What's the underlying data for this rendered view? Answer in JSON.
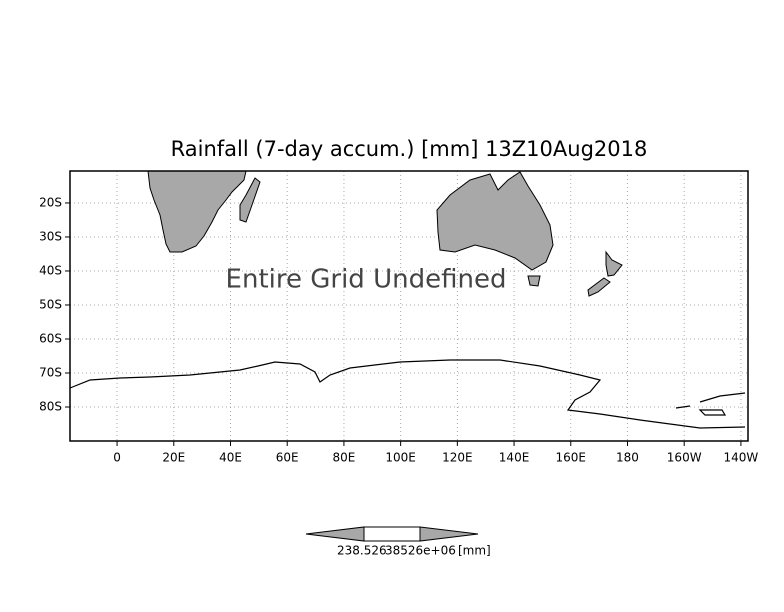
{
  "map": {
    "title": "Rainfall (7-day accum.) [mm] 13Z10Aug2018",
    "annotation": "Entire Grid Undefined",
    "xlim": [
      -16.6,
      222.5
    ],
    "ylim": [
      -90,
      -10.6
    ],
    "xticks": [
      0,
      {
        "value": 20,
        "label": "20E"
      },
      {
        "value": 40,
        "label": "40E"
      },
      {
        "value": 60,
        "label": "60E"
      },
      {
        "value": 80,
        "label": "80E"
      },
      {
        "value": 100,
        "label": "100E"
      },
      {
        "value": 120,
        "label": "120E"
      },
      {
        "value": 140,
        "label": "140E"
      },
      {
        "value": 160,
        "label": "160E"
      },
      180,
      {
        "value": 200,
        "label": "160W"
      },
      {
        "value": 220,
        "label": "140W"
      }
    ],
    "yticks": [
      {
        "value": -20,
        "label": "20S"
      },
      {
        "value": -30,
        "label": "30S"
      },
      {
        "value": -40,
        "label": "40S"
      },
      {
        "value": -50,
        "label": "50S"
      },
      {
        "value": -60,
        "label": "60S"
      },
      {
        "value": -70,
        "label": "70S"
      },
      {
        "value": -80,
        "label": "80S"
      }
    ],
    "grid": true,
    "colorbar": {
      "labels": [
        "238.526",
        "38526e+06",
        "[mm]"
      ]
    }
  }
}
